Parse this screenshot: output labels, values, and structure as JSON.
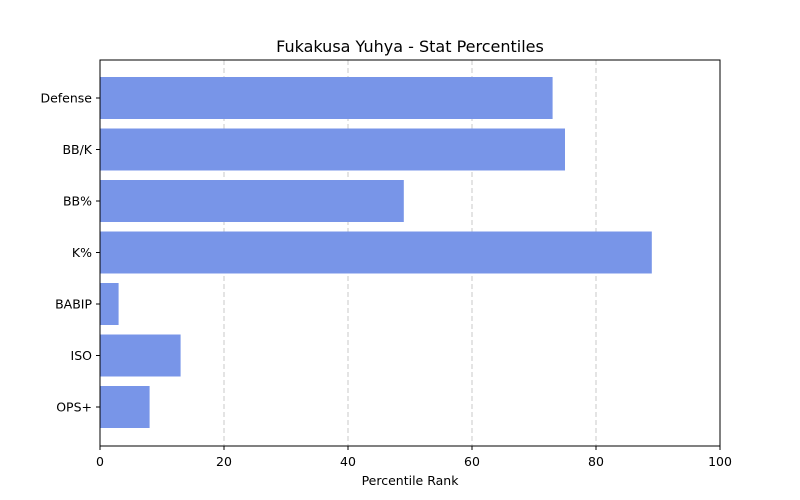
{
  "chart_data": {
    "type": "bar",
    "orientation": "horizontal",
    "title": "Fukakusa Yuhya - Stat Percentiles",
    "xlabel": "Percentile Rank",
    "ylabel": "",
    "categories": [
      "Defense",
      "BB/K",
      "BB%",
      "K%",
      "BABIP",
      "ISO",
      "OPS+"
    ],
    "values": [
      73,
      75,
      49,
      89,
      3,
      13,
      8
    ],
    "xlim": [
      0,
      100
    ],
    "xticks": [
      0,
      20,
      40,
      60,
      80,
      100
    ],
    "grid": "vertical dashed",
    "bar_color": "#7895e8"
  }
}
